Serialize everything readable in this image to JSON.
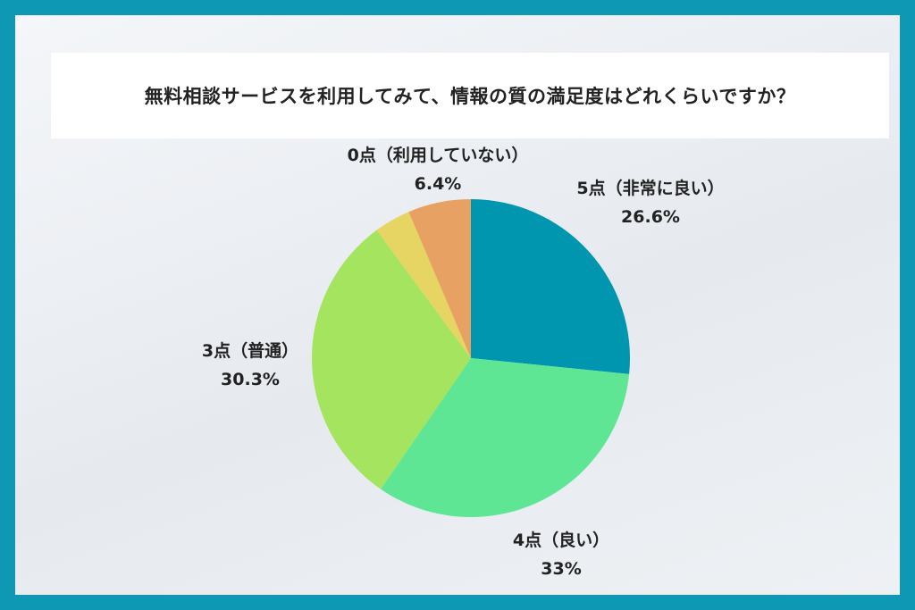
{
  "chart_data": {
    "type": "pie",
    "title": "無料相談サービスを利用してみて、情報の質の満足度はどれくらいですか？",
    "slices": [
      {
        "label": "5点（非常に良い）",
        "value": 26.6,
        "value_label": "26.6%",
        "color": "#0096b0"
      },
      {
        "label": "4点（良い）",
        "value": 33,
        "value_label": "33%",
        "color": "#5ee695"
      },
      {
        "label": "3点（普通）",
        "value": 30.3,
        "value_label": "30.3%",
        "color": "#a5e45e"
      },
      {
        "label": "",
        "value": 3.7,
        "value_label": "",
        "color": "#e6d463"
      },
      {
        "label": "0点（利用していない）",
        "value": 6.4,
        "value_label": "6.4%",
        "color": "#e7a162"
      }
    ]
  }
}
